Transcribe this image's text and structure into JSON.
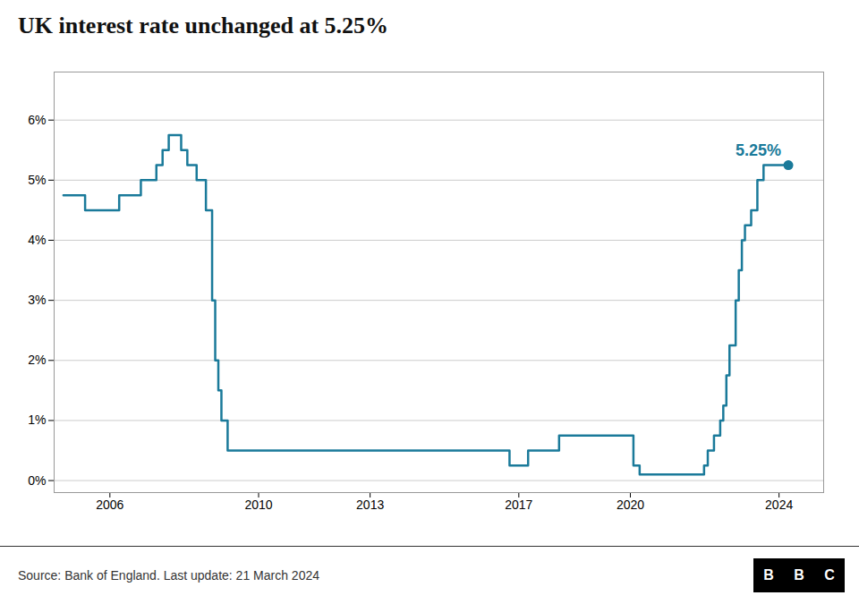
{
  "chart_data": {
    "type": "step",
    "title": "UK interest rate unchanged at 5.25%",
    "source": "Source: Bank of England. Last update: 21 March 2024",
    "logo": "BBC",
    "color": "#1a7a9a",
    "x": [
      2004.75,
      2005.333,
      2005.583,
      2006.083,
      2006.25,
      2006.583,
      2006.833,
      2007.083,
      2007.25,
      2007.417,
      2007.583,
      2007.833,
      2007.917,
      2008.083,
      2008.333,
      2008.583,
      2008.75,
      2008.833,
      2008.917,
      2009.0,
      2009.167,
      2016.667,
      2016.75,
      2017.083,
      2017.25,
      2018.0,
      2018.083,
      2018.583,
      2019.75,
      2020.083,
      2020.25,
      2021.917,
      2021.983,
      2022.083,
      2022.25,
      2022.417,
      2022.5,
      2022.583,
      2022.667,
      2022.833,
      2022.917,
      2023.0,
      2023.083,
      2023.25,
      2023.417,
      2023.583,
      2024.25
    ],
    "values": [
      4.75,
      4.5,
      4.5,
      4.5,
      4.75,
      4.75,
      5.0,
      5.0,
      5.25,
      5.5,
      5.75,
      5.75,
      5.5,
      5.25,
      5.0,
      4.5,
      3.0,
      2.0,
      1.5,
      1.0,
      0.5,
      0.5,
      0.25,
      0.25,
      0.5,
      0.5,
      0.75,
      0.75,
      0.75,
      0.25,
      0.1,
      0.1,
      0.25,
      0.5,
      0.75,
      1.0,
      1.25,
      1.75,
      2.25,
      3.0,
      3.5,
      4.0,
      4.25,
      4.5,
      5.0,
      5.25,
      5.25
    ],
    "annotations": [
      {
        "text": "5.25%",
        "x": 2024.25,
        "y": 5.25
      }
    ],
    "xlim": [
      2004.5,
      2025.2
    ],
    "xticks": [
      2006,
      2010,
      2013,
      2017,
      2020,
      2024
    ],
    "ylim": [
      -0.2,
      6.8
    ],
    "yticks": [
      {
        "value": 0,
        "label": "0%"
      },
      {
        "value": 1,
        "label": "1%"
      },
      {
        "value": 2,
        "label": "2%"
      },
      {
        "value": 3,
        "label": "3%"
      },
      {
        "value": 4,
        "label": "4%"
      },
      {
        "value": 5,
        "label": "5%"
      },
      {
        "value": 6,
        "label": "6%"
      }
    ],
    "grid": true
  }
}
